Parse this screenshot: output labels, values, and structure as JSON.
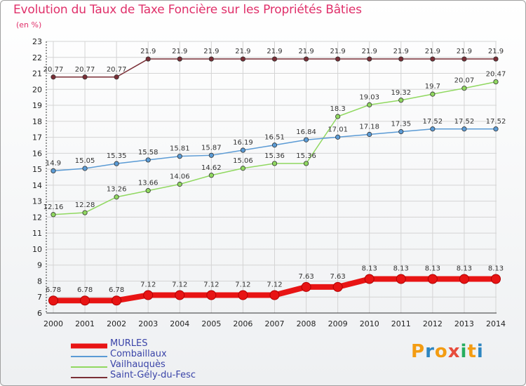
{
  "title": "Evolution du Taux de Taxe Foncière sur les Propriétés Bâties",
  "subtitle": "(en %)",
  "logo": {
    "text": "Proxiti",
    "colors": [
      "#f39c12",
      "#2e86c1",
      "#f39c12",
      "#e74c3c",
      "#27ae60",
      "#f39c12",
      "#2e86c1"
    ]
  },
  "chart_data": {
    "type": "line",
    "title": "Evolution du Taux de Taxe Foncière sur les Propriétés Bâties",
    "ylabel": "(en %)",
    "xlabel": "",
    "ylim": [
      6,
      23
    ],
    "yticks": [
      6,
      7,
      8,
      9,
      10,
      11,
      12,
      13,
      14,
      15,
      16,
      17,
      18,
      19,
      20,
      21,
      22,
      23
    ],
    "grid": true,
    "categories": [
      "2000",
      "2001",
      "2002",
      "2003",
      "2004",
      "2005",
      "2006",
      "2007",
      "2008",
      "2009",
      "2010",
      "2011",
      "2012",
      "2013",
      "2014"
    ],
    "series": [
      {
        "name": "MURLES",
        "color": "#e81414",
        "values": [
          6.78,
          6.78,
          6.78,
          7.12,
          7.12,
          7.12,
          7.12,
          7.12,
          7.63,
          7.63,
          8.13,
          8.13,
          8.13,
          8.13,
          8.13
        ],
        "labels": [
          "6.78",
          "6.78",
          "6.78",
          "7.12",
          "7.12",
          "7.12",
          "7.12",
          "7.12",
          "7.63",
          "7.63",
          "8.13",
          "8.13",
          "8.13",
          "8.13",
          "8.13"
        ]
      },
      {
        "name": "Combaillaux",
        "color": "#5b9bd5",
        "values": [
          14.9,
          15.05,
          15.35,
          15.58,
          15.81,
          15.87,
          16.19,
          16.51,
          16.84,
          17.01,
          17.18,
          17.35,
          17.52,
          17.52,
          17.52
        ],
        "labels": [
          "14.9",
          "15.05",
          "15.35",
          "15.58",
          "15.81",
          "15.87",
          "16.19",
          "16.51",
          "16.84",
          "17.01",
          "17.18",
          "17.35",
          "17.52",
          "17.52",
          "17.52"
        ]
      },
      {
        "name": "Vailhauquès",
        "color": "#90d860",
        "values": [
          12.16,
          12.28,
          13.26,
          13.66,
          14.06,
          14.62,
          15.06,
          15.36,
          15.36,
          18.3,
          19.03,
          19.32,
          19.7,
          20.07,
          20.47
        ],
        "labels": [
          "12.16",
          "12.28",
          "13.26",
          "13.66",
          "14.06",
          "14.62",
          "15.06",
          "15.36",
          "15.36",
          "18.3",
          "19.03",
          "19.32",
          "19.7",
          "20.07",
          "20.47"
        ]
      },
      {
        "name": "Saint-Gély-du-Fesc",
        "color": "#7a2e36",
        "values": [
          20.77,
          20.77,
          20.77,
          21.9,
          21.9,
          21.9,
          21.9,
          21.9,
          21.9,
          21.9,
          21.9,
          21.9,
          21.9,
          21.9,
          21.9
        ],
        "labels": [
          "20.77",
          "20.77",
          "20.77",
          "21.9",
          "21.9",
          "21.9",
          "21.9",
          "21.9",
          "21.9",
          "21.9",
          "21.9",
          "21.9",
          "21.9",
          "21.9",
          "21.9"
        ]
      }
    ]
  }
}
